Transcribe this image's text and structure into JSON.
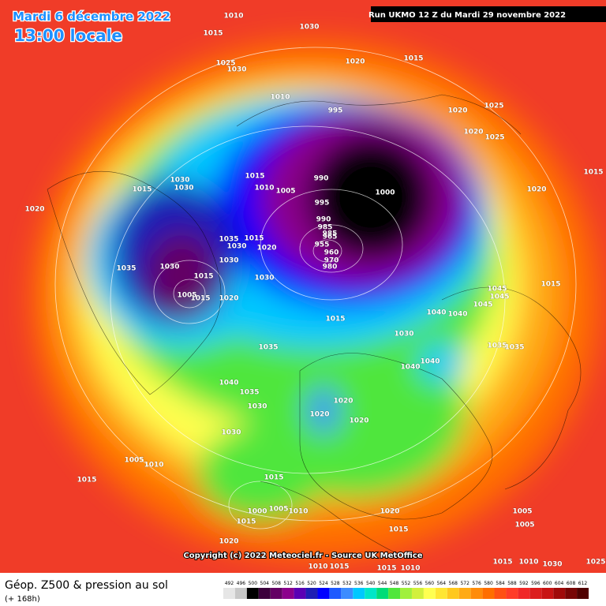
{
  "header": {
    "date": "Mardi 6 décembre 2022",
    "time": "13:00 locale",
    "run": "Run UKMO 12 Z du Mardi 29 novembre 2022"
  },
  "map": {
    "isobar_labels": [
      "1010",
      "1030",
      "1015",
      "1025",
      "1030",
      "1020",
      "1015",
      "1010",
      "995",
      "1020",
      "1025",
      "1020",
      "1025",
      "1015",
      "1030",
      "1030",
      "1015",
      "1010",
      "1005",
      "990",
      "985",
      "1000",
      "995",
      "990",
      "985",
      "965",
      "955",
      "960",
      "970",
      "980",
      "1020",
      "1015",
      "1035",
      "1030",
      "1035",
      "1030",
      "1030",
      "1015",
      "1005",
      "1020",
      "1030",
      "1015",
      "1015",
      "1035",
      "1045",
      "1045",
      "1045",
      "1040",
      "1040",
      "1030",
      "1035",
      "1040",
      "1035",
      "1030",
      "1020",
      "1020",
      "1020",
      "1040",
      "1040",
      "1030",
      "1005",
      "1010",
      "1015",
      "1015",
      "1020",
      "1005",
      "1000",
      "1010",
      "1015",
      "1020",
      "1015",
      "1015",
      "1015",
      "1010",
      "1010",
      "1005",
      "1005",
      "1015",
      "1010",
      "1025",
      "1030",
      "1015",
      "1020",
      "1015",
      "1020",
      "1035"
    ],
    "copyright": "Copyright (c) 2022 Meteociel.fr - Source UK MetOffice"
  },
  "footer": {
    "title": "Géop. Z500 & pression au sol",
    "subtitle": "(+ 168h)"
  },
  "scale": {
    "labels": [
      "492",
      "496",
      "500",
      "504",
      "508",
      "512",
      "516",
      "520",
      "524",
      "528",
      "532",
      "536",
      "540",
      "544",
      "548",
      "552",
      "556",
      "560",
      "564",
      "568",
      "572",
      "576",
      "580",
      "584",
      "588",
      "592",
      "596",
      "600",
      "604",
      "608",
      "612"
    ],
    "colors": [
      "#e6e6e6",
      "#c8c8c8",
      "#000000",
      "#3c003c",
      "#640064",
      "#8c008c",
      "#5a00b4",
      "#1e1eb4",
      "#0000ff",
      "#1e5aff",
      "#3c8cff",
      "#00c8ff",
      "#00e6c8",
      "#00dc78",
      "#50e63c",
      "#a0f03c",
      "#d2f03c",
      "#ffff50",
      "#ffe632",
      "#ffc81e",
      "#ffaa14",
      "#ff8c0a",
      "#ff6e00",
      "#ff5014",
      "#ff3c28",
      "#f02828",
      "#dc1e1e",
      "#c81414",
      "#a00a0a",
      "#780505",
      "#500000"
    ]
  }
}
